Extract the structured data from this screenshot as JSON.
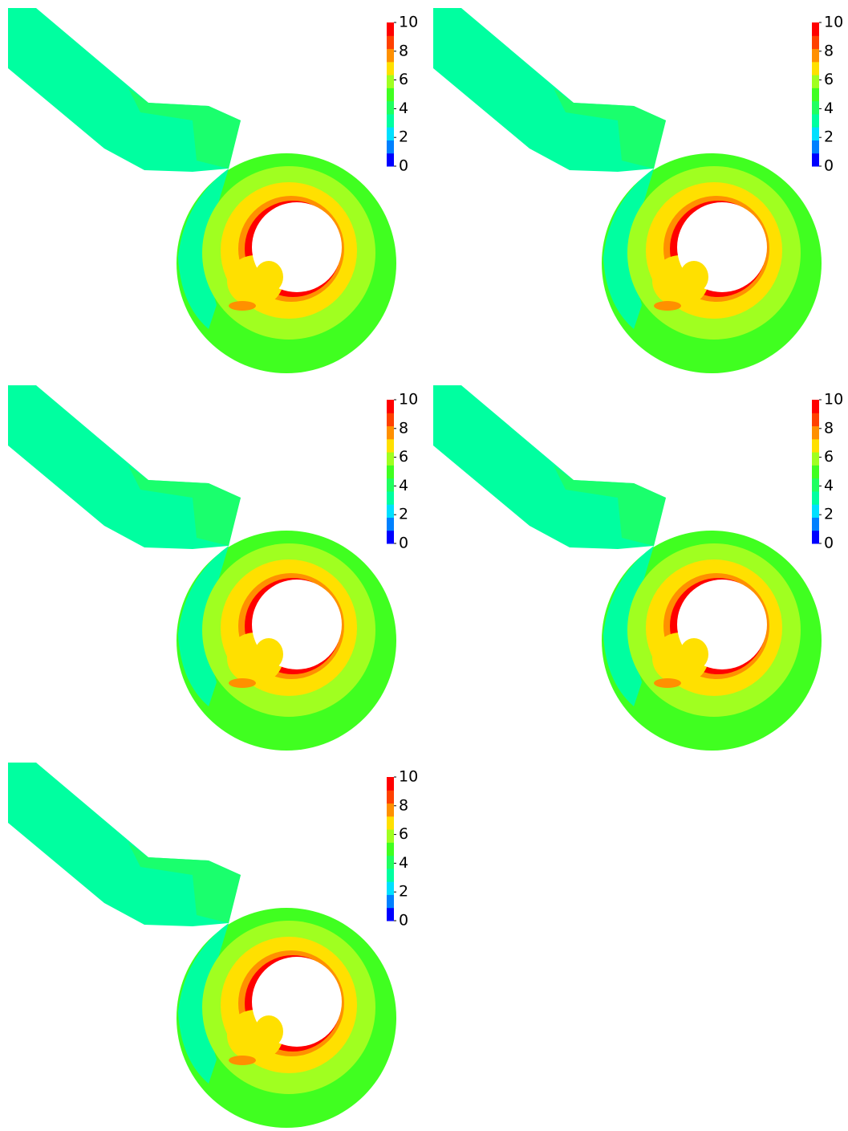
{
  "panels": [
    {
      "colorbar": {
        "range": [
          0,
          10
        ],
        "ticks": [
          0,
          2,
          4,
          6,
          8,
          10
        ]
      }
    },
    {
      "colorbar": {
        "range": [
          0,
          10
        ],
        "ticks": [
          0,
          2,
          4,
          6,
          8,
          10
        ]
      }
    },
    {
      "colorbar": {
        "range": [
          0,
          10
        ],
        "ticks": [
          0,
          2,
          4,
          6,
          8,
          10
        ]
      }
    },
    {
      "colorbar": {
        "range": [
          0,
          10
        ],
        "ticks": [
          0,
          2,
          4,
          6,
          8,
          10
        ]
      }
    },
    {
      "colorbar": {
        "range": [
          0,
          10
        ],
        "ticks": [
          0,
          2,
          4,
          6,
          8,
          10
        ]
      }
    }
  ],
  "colormap": [
    "#0000ff",
    "#0080ff",
    "#00e0ff",
    "#00ffa0",
    "#20ff60",
    "#40ff20",
    "#a0ff20",
    "#ffe000",
    "#ff9000",
    "#ff4000",
    "#ff0000"
  ]
}
